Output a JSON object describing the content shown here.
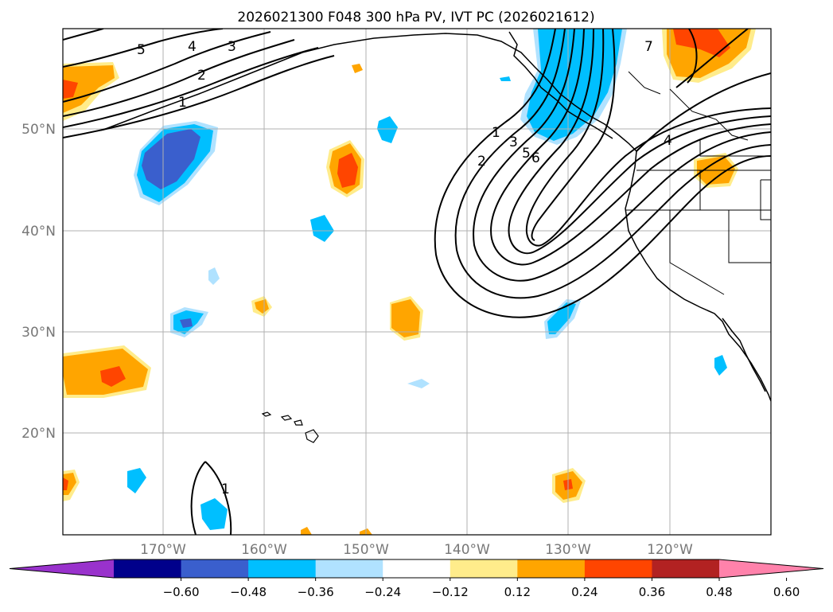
{
  "title": "2026021300 F048 300 hPa PV, IVT PC (2026021612)",
  "lon_labels": [
    "170°W",
    "160°W",
    "150°W",
    "140°W",
    "130°W",
    "120°W"
  ],
  "lat_labels": [
    "50°N",
    "40°N",
    "30°N",
    "20°N"
  ],
  "contour_labels": [
    "5",
    "4",
    "3",
    "2",
    "1",
    "1",
    "2",
    "3",
    "5",
    "6",
    "7",
    "4",
    "1"
  ],
  "colorbar": {
    "ticks": [
      "−0.60",
      "−0.48",
      "−0.36",
      "−0.24",
      "−0.12",
      "0.12",
      "0.24",
      "0.36",
      "0.48",
      "0.60"
    ],
    "colors": [
      "#9932cc",
      "#00008b",
      "#3a5fcd",
      "#00bfff",
      "#b0e2ff",
      "#ffffff",
      "#ffec8b",
      "#ffa500",
      "#ff4500",
      "#b22222",
      "#ff82ab"
    ]
  },
  "colors": {
    "strong_negative": "#3a5fcd",
    "negative": "#00bfff",
    "weak_negative": "#b0e2ff",
    "weak_positive": "#ffec8b",
    "positive": "#ffa500",
    "strong_positive": "#ff4500",
    "grid": "#b0b0b0",
    "contour": "#000000"
  },
  "legend_meaning": {
    "shading": "300 hPa PV",
    "contours": "IVT PC"
  }
}
